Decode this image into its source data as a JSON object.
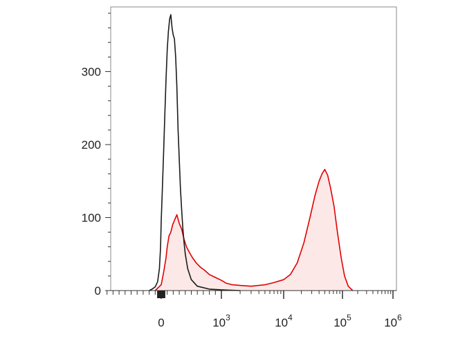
{
  "chart_data": {
    "type": "area",
    "title": "",
    "xlabel": "",
    "ylabel": "",
    "x_scale": "biexponential",
    "ylim": [
      0,
      380
    ],
    "grid": false,
    "legend": "none",
    "y_ticks": [
      {
        "value": 0,
        "label": "0"
      },
      {
        "value": 100,
        "label": "100"
      },
      {
        "value": 200,
        "label": "200"
      },
      {
        "value": 300,
        "label": "300"
      }
    ],
    "x_ticks": [
      {
        "value": 0,
        "base": "0",
        "exp": ""
      },
      {
        "value": 1000,
        "base": "10",
        "exp": "3"
      },
      {
        "value": 10000,
        "base": "10",
        "exp": "4"
      },
      {
        "value": 100000,
        "base": "10",
        "exp": "5"
      },
      {
        "value": 1000000,
        "base": "10",
        "exp": "6"
      }
    ],
    "series": [
      {
        "color": "#1a1a1a",
        "fill": "none",
        "points": [
          [
            -200,
            0
          ],
          [
            -150,
            2
          ],
          [
            -100,
            5
          ],
          [
            -60,
            12
          ],
          [
            -30,
            30
          ],
          [
            -10,
            60
          ],
          [
            0,
            95
          ],
          [
            20,
            140
          ],
          [
            40,
            190
          ],
          [
            60,
            240
          ],
          [
            80,
            290
          ],
          [
            100,
            330
          ],
          [
            120,
            355
          ],
          [
            140,
            372
          ],
          [
            160,
            378
          ],
          [
            180,
            360
          ],
          [
            200,
            350
          ],
          [
            220,
            345
          ],
          [
            240,
            320
          ],
          [
            260,
            280
          ],
          [
            280,
            220
          ],
          [
            300,
            180
          ],
          [
            320,
            140
          ],
          [
            340,
            110
          ],
          [
            360,
            85
          ],
          [
            380,
            65
          ],
          [
            400,
            50
          ],
          [
            440,
            30
          ],
          [
            500,
            15
          ],
          [
            600,
            6
          ],
          [
            800,
            2
          ],
          [
            1000,
            1
          ],
          [
            2000,
            0
          ]
        ]
      },
      {
        "color": "#e00000",
        "fill": "#fde8e8",
        "points": [
          [
            -100,
            0
          ],
          [
            0,
            8
          ],
          [
            40,
            25
          ],
          [
            80,
            45
          ],
          [
            100,
            60
          ],
          [
            130,
            75
          ],
          [
            160,
            80
          ],
          [
            190,
            90
          ],
          [
            220,
            96
          ],
          [
            260,
            104
          ],
          [
            300,
            92
          ],
          [
            340,
            84
          ],
          [
            380,
            70
          ],
          [
            420,
            60
          ],
          [
            470,
            52
          ],
          [
            520,
            45
          ],
          [
            580,
            38
          ],
          [
            650,
            32
          ],
          [
            720,
            28
          ],
          [
            800,
            22
          ],
          [
            900,
            18
          ],
          [
            1000,
            14
          ],
          [
            1200,
            10
          ],
          [
            1500,
            8
          ],
          [
            2000,
            7
          ],
          [
            3000,
            6
          ],
          [
            5000,
            8
          ],
          [
            7000,
            11
          ],
          [
            10000,
            15
          ],
          [
            13000,
            22
          ],
          [
            17000,
            38
          ],
          [
            22000,
            65
          ],
          [
            28000,
            100
          ],
          [
            34000,
            130
          ],
          [
            40000,
            150
          ],
          [
            45000,
            160
          ],
          [
            50000,
            166
          ],
          [
            56000,
            158
          ],
          [
            63000,
            140
          ],
          [
            72000,
            115
          ],
          [
            82000,
            80
          ],
          [
            95000,
            45
          ],
          [
            110000,
            20
          ],
          [
            130000,
            6
          ],
          [
            160000,
            0
          ]
        ]
      }
    ]
  }
}
